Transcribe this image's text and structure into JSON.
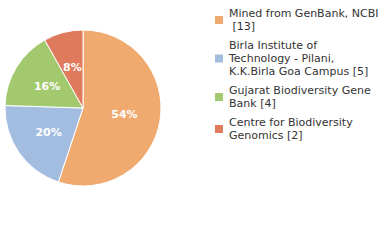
{
  "chart_data": {
    "type": "pie",
    "categories": [
      "Mined from GenBank, NCBI [13]",
      "Birla Institute of Technology - Pilani, K.K.Birla Goa Campus [5]",
      "Gujarat Biodiversity Gene Bank [4]",
      "Centre for Biodiversity Genomics [2]"
    ],
    "values": [
      54,
      20,
      16,
      8
    ],
    "value_labels": [
      "54%",
      "20%",
      "16%",
      "8%"
    ],
    "colors": [
      "#f0a96e",
      "#a3bde0",
      "#a3c96f",
      "#e07a5c"
    ],
    "data_labels": true,
    "legend": "right"
  }
}
